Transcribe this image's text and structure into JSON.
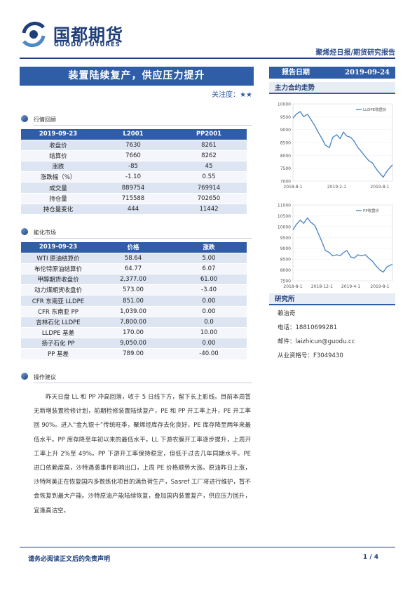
{
  "header": {
    "logo_cn": "国都期货",
    "logo_en": "GUODU FUTURES",
    "report_type": "聚烯烃日报/期货研究报告",
    "report_date_label": "报告日期",
    "report_date": "2019-09-24"
  },
  "title": "装置陆续复产，供应压力提升",
  "attention": {
    "label": "关注度：",
    "stars": "★★"
  },
  "market_review": {
    "section_title": "行情回顾",
    "headers": [
      "2019-09-23",
      "L2001",
      "PP2001"
    ],
    "rows": [
      [
        "收盘价",
        "7630",
        "8261"
      ],
      [
        "结算价",
        "7660",
        "8262"
      ],
      [
        "涨跌",
        "-85",
        "45"
      ],
      [
        "涨跌幅（%）",
        "-1.10",
        "0.55"
      ],
      [
        "成交量",
        "889754",
        "769914"
      ],
      [
        "持仓量",
        "715588",
        "702650"
      ],
      [
        "持仓量变化",
        "444",
        "11442"
      ]
    ]
  },
  "chemical_market": {
    "section_title": "能化市场",
    "headers": [
      "2019-09-23",
      "价格",
      "涨跌"
    ],
    "rows": [
      [
        "WTI 原油结算价",
        "58.64",
        "5.00"
      ],
      [
        "布伦特原油结算价",
        "64.77",
        "6.07"
      ],
      [
        "甲醇期货收盘价",
        "2,377.00",
        "61.00"
      ],
      [
        "动力煤期货收盘价",
        "573.00",
        "-3.40"
      ],
      [
        "CFR 东南亚 LLDPE",
        "851.00",
        "0.00"
      ],
      [
        "CFR 东南亚 PP",
        "1,039.00",
        "0.00"
      ],
      [
        "吉林石化 LLDPE",
        "7,800.00",
        "0.0"
      ],
      [
        "LLDPE 基差",
        "170.00",
        "10.00"
      ],
      [
        "扬子石化 PP",
        "9,050.00",
        "0.00"
      ],
      [
        "PP 基差",
        "789.00",
        "-40.00"
      ]
    ]
  },
  "advice": {
    "section_title": "操作建议",
    "text": "昨天日盘 LL 和 PP 冲高回落，收于 5 日线下方，留下长上影线。目前本周暂无新增装置检修计划，前期检修装置陆续复产，PE 和 PP 开工率上升，PE 开工率回 90%。进入“金九银十”传统旺季，聚烯烃库存去化良好，PE 库存降至两年来最低水平。PP 库存降至年初以来的最低水平。LL 下游农膜开工率逐步提升，上周开工率上升 2%至 49%。PP 下游开工率保持稳定，但低于过去几年同期水平。PE 进口依赖度高，沙特遇袭事件影响出口，上周 PE 价格顺势大涨。原油昨日上涨，沙特阿美正在恢复国内多数炼化项目的满负荷生产，Sasref 工厂将进行维护，暂不会恢复到最大产能。沙特原油产能陆续恢复，叠加国内装置复产，供应压力回升，宜逢高沽空。"
  },
  "side": {
    "trend_title": "主力合约走势",
    "research_title": "研究所",
    "analyst": "赖治奇",
    "phone": "电话：18810699281",
    "email": "邮件：laizhicun@guodu.cc",
    "license": "从业资格号：F3049430"
  },
  "chart_data": [
    {
      "type": "line",
      "series": [
        {
          "name": "LLDPE收盘价",
          "color": "#4f88c6",
          "x": [
            "2018-08-01",
            "2018-08-15",
            "2018-09-01",
            "2018-09-15",
            "2018-10-01",
            "2018-10-15",
            "2018-11-01",
            "2018-11-15",
            "2018-12-01",
            "2018-12-15",
            "2019-01-01",
            "2019-01-15",
            "2019-02-01",
            "2019-02-15",
            "2019-03-01",
            "2019-03-15",
            "2019-04-01",
            "2019-04-15",
            "2019-05-01",
            "2019-05-15",
            "2019-06-01",
            "2019-06-15",
            "2019-07-01",
            "2019-07-15",
            "2019-08-01",
            "2019-08-15",
            "2019-09-01",
            "2019-09-23"
          ],
          "values": [
            9450,
            9600,
            9700,
            9500,
            9600,
            9400,
            9150,
            8900,
            8650,
            8400,
            8300,
            8700,
            8800,
            8650,
            8900,
            8750,
            8700,
            8550,
            8300,
            8150,
            7950,
            7800,
            7700,
            7500,
            7300,
            7150,
            7400,
            7630
          ]
        }
      ],
      "xticks": [
        "2018-8-1",
        "2019-2-1",
        "2019-8-1"
      ],
      "ylim": [
        7000,
        10000
      ],
      "yticks": [
        7000,
        7500,
        8000,
        8500,
        9000,
        9500,
        10000
      ],
      "legend": "top-right"
    },
    {
      "type": "line",
      "series": [
        {
          "name": "PP收盘价",
          "color": "#4f88c6",
          "x": [
            "2018-08-01",
            "2018-08-15",
            "2018-09-01",
            "2018-09-15",
            "2018-10-01",
            "2018-10-15",
            "2018-11-01",
            "2018-11-15",
            "2018-12-01",
            "2018-12-15",
            "2019-01-01",
            "2019-01-15",
            "2019-02-01",
            "2019-02-15",
            "2019-03-01",
            "2019-03-15",
            "2019-04-01",
            "2019-04-15",
            "2019-05-01",
            "2019-05-15",
            "2019-06-01",
            "2019-06-15",
            "2019-07-01",
            "2019-07-15",
            "2019-08-01",
            "2019-08-15",
            "2019-09-01",
            "2019-09-23"
          ],
          "values": [
            9850,
            10100,
            10300,
            10150,
            10400,
            10200,
            10050,
            9700,
            9300,
            8900,
            8800,
            8650,
            8700,
            8650,
            8800,
            8900,
            8600,
            8550,
            8700,
            8650,
            8700,
            8550,
            8400,
            8200,
            8000,
            7900,
            8150,
            8261
          ]
        }
      ],
      "xticks": [
        "2018-8-1",
        "2018-12-1",
        "2019-4-1",
        "2019-8-1"
      ],
      "ylim": [
        7500,
        11000
      ],
      "yticks": [
        7500,
        8000,
        8500,
        9000,
        9500,
        10000,
        10500,
        11000
      ],
      "legend": "top-right"
    }
  ],
  "footer": {
    "disclaimer": "请务必阅读正文后的免责声明",
    "page": "1 / 4"
  }
}
